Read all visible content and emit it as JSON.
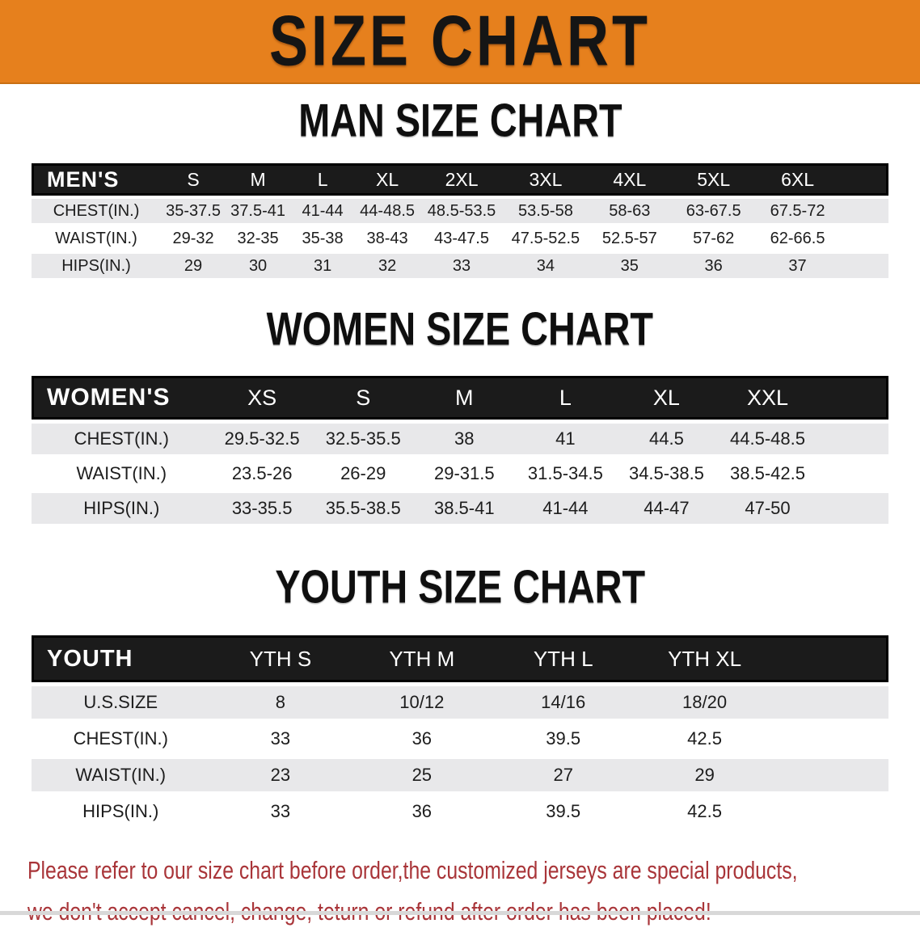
{
  "banner": {
    "title": "SIZE CHART",
    "bg_color": "#E6801D",
    "text_color": "#151515"
  },
  "colors": {
    "table_header_bg": "#1b1b1b",
    "table_header_text": "#ffffff",
    "row_stripe": "#E8E8EA",
    "disclaimer_text": "#A93539"
  },
  "sections": [
    {
      "heading": "MAN SIZE CHART",
      "table": {
        "label": "MEN'S",
        "columns": [
          "S",
          "M",
          "L",
          "XL",
          "2XL",
          "3XL",
          "4XL",
          "5XL",
          "6XL"
        ],
        "rows": [
          {
            "label": "CHEST(IN.)",
            "values": [
              "35-37.5",
              "37.5-41",
              "41-44",
              "44-48.5",
              "48.5-53.5",
              "53.5-58",
              "58-63",
              "63-67.5",
              "67.5-72"
            ]
          },
          {
            "label": "WAIST(IN.)",
            "values": [
              "29-32",
              "32-35",
              "35-38",
              "38-43",
              "43-47.5",
              "47.5-52.5",
              "52.5-57",
              "57-62",
              "62-66.5"
            ]
          },
          {
            "label": "HIPS(IN.)",
            "values": [
              "29",
              "30",
              "31",
              "32",
              "33",
              "34",
              "35",
              "36",
              "37"
            ]
          }
        ]
      }
    },
    {
      "heading": "WOMEN SIZE CHART",
      "table": {
        "label": "WOMEN'S",
        "columns": [
          "XS",
          "S",
          "M",
          "L",
          "XL",
          "XXL"
        ],
        "rows": [
          {
            "label": "CHEST(IN.)",
            "values": [
              "29.5-32.5",
              "32.5-35.5",
              "38",
              "41",
              "44.5",
              "44.5-48.5"
            ]
          },
          {
            "label": "WAIST(IN.)",
            "values": [
              "23.5-26",
              "26-29",
              "29-31.5",
              "31.5-34.5",
              "34.5-38.5",
              "38.5-42.5"
            ]
          },
          {
            "label": "HIPS(IN.)",
            "values": [
              "33-35.5",
              "35.5-38.5",
              "38.5-41",
              "41-44",
              "44-47",
              "47-50"
            ]
          }
        ]
      }
    },
    {
      "heading": "YOUTH SIZE CHART",
      "table": {
        "label": "YOUTH",
        "columns": [
          "YTH S",
          "YTH M",
          "YTH L",
          "YTH XL"
        ],
        "rows": [
          {
            "label": "U.S.SIZE",
            "values": [
              "8",
              "10/12",
              "14/16",
              "18/20"
            ]
          },
          {
            "label": "CHEST(IN.)",
            "values": [
              "33",
              "36",
              "39.5",
              "42.5"
            ]
          },
          {
            "label": "WAIST(IN.)",
            "values": [
              "23",
              "25",
              "27",
              "29"
            ]
          },
          {
            "label": "HIPS(IN.)",
            "values": [
              "33",
              "36",
              "39.5",
              "42.5"
            ]
          }
        ]
      }
    }
  ],
  "disclaimer": {
    "line1": "Please refer to our size chart before order,the customized jerseys are special products,",
    "line2": "we don't accept cancel, change, teturn or refund after order has been placed!"
  }
}
